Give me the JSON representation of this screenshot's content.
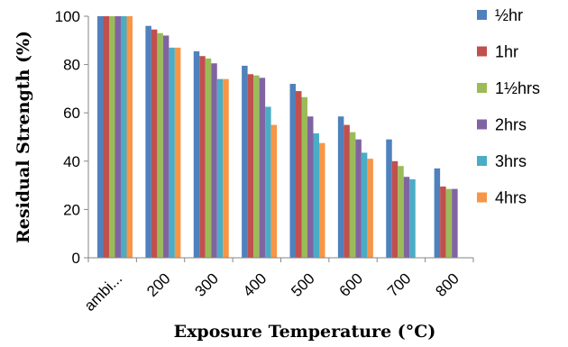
{
  "chart_data": {
    "type": "bar",
    "title": "",
    "xlabel": "Exposure Temperature (°C)",
    "ylabel": "Residual Strength (%)",
    "ylim": [
      0,
      100
    ],
    "yticks": [
      0,
      20,
      40,
      60,
      80,
      100
    ],
    "grid": false,
    "legend_position": "right",
    "categories": [
      "ambi...",
      "200",
      "300",
      "400",
      "500",
      "600",
      "700",
      "800"
    ],
    "series": [
      {
        "name": "½hr",
        "color": "#4f81bd",
        "values": [
          100,
          96,
          85.5,
          79.5,
          72,
          58.5,
          49,
          37
        ]
      },
      {
        "name": "1hr",
        "color": "#c0504d",
        "values": [
          100,
          94.5,
          83.5,
          76,
          69,
          55,
          40,
          29.5
        ]
      },
      {
        "name": "1½hrs",
        "color": "#9bbb59",
        "values": [
          100,
          93,
          82.5,
          75.5,
          66.5,
          52,
          38,
          28.5
        ]
      },
      {
        "name": "2hrs",
        "color": "#8064a2",
        "values": [
          100,
          92,
          80.5,
          74.5,
          58.5,
          49,
          33.5,
          28.5
        ]
      },
      {
        "name": "3hrs",
        "color": "#4bacc6",
        "values": [
          100,
          87,
          74,
          62.5,
          51.5,
          43.5,
          32.5,
          null
        ]
      },
      {
        "name": "4hrs",
        "color": "#f79646",
        "values": [
          100,
          87,
          74,
          55,
          47.5,
          41,
          null,
          null
        ]
      }
    ]
  }
}
